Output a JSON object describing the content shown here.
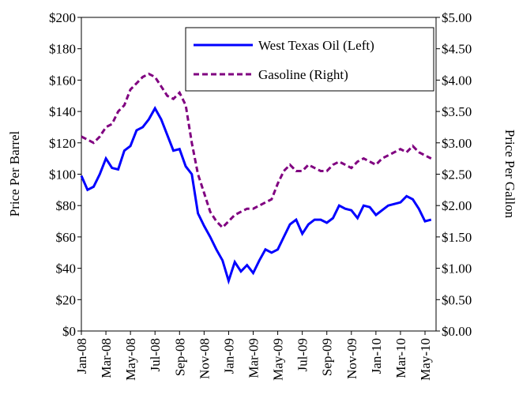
{
  "chart_data": {
    "type": "line",
    "y_label": "Price Per Barrel",
    "y2_label": "Price Per Gallon",
    "x": [
      0,
      0.5,
      1,
      1.5,
      2,
      2.5,
      3,
      3.5,
      4,
      4.5,
      5,
      5.5,
      6,
      6.5,
      7,
      7.5,
      8,
      8.5,
      9,
      9.5,
      10,
      10.5,
      11,
      11.5,
      12,
      12.5,
      13,
      13.5,
      14,
      14.5,
      15,
      15.5,
      16,
      16.5,
      17,
      17.5,
      18,
      18.5,
      19,
      19.5,
      20,
      20.5,
      21,
      21.5,
      22,
      22.5,
      23,
      23.5,
      24,
      24.5,
      25,
      25.5,
      26,
      26.5,
      27,
      27.5,
      28,
      28.5
    ],
    "xlim": [
      0,
      28.9
    ],
    "xticks": [
      {
        "value": 0,
        "label": "Jan-08"
      },
      {
        "value": 2,
        "label": "Mar-08"
      },
      {
        "value": 4,
        "label": "May-08"
      },
      {
        "value": 6,
        "label": "Jul-08"
      },
      {
        "value": 8,
        "label": "Sep-08"
      },
      {
        "value": 10,
        "label": "Nov-08"
      },
      {
        "value": 12,
        "label": "Jan-09"
      },
      {
        "value": 14,
        "label": "Mar-09"
      },
      {
        "value": 16,
        "label": "May-09"
      },
      {
        "value": 18,
        "label": "Jul-09"
      },
      {
        "value": 20,
        "label": "Sep-09"
      },
      {
        "value": 22,
        "label": "Nov-09"
      },
      {
        "value": 24,
        "label": "Jan-10"
      },
      {
        "value": 26,
        "label": "Mar-10"
      },
      {
        "value": 28,
        "label": "May-10"
      }
    ],
    "ylim": [
      0,
      200
    ],
    "yticks": [
      {
        "value": 0,
        "label": "$0"
      },
      {
        "value": 20,
        "label": "$20"
      },
      {
        "value": 40,
        "label": "$40"
      },
      {
        "value": 60,
        "label": "$60"
      },
      {
        "value": 80,
        "label": "$80"
      },
      {
        "value": 100,
        "label": "$100"
      },
      {
        "value": 120,
        "label": "$120"
      },
      {
        "value": 140,
        "label": "$140"
      },
      {
        "value": 160,
        "label": "$160"
      },
      {
        "value": 180,
        "label": "$180"
      },
      {
        "value": 200,
        "label": "$200"
      }
    ],
    "y2lim": [
      0,
      5
    ],
    "y2ticks": [
      {
        "value": 0,
        "label": "$0.00"
      },
      {
        "value": 0.5,
        "label": "$0.50"
      },
      {
        "value": 1,
        "label": "$1.00"
      },
      {
        "value": 1.5,
        "label": "$1.50"
      },
      {
        "value": 2,
        "label": "$2.00"
      },
      {
        "value": 2.5,
        "label": "$2.50"
      },
      {
        "value": 3,
        "label": "$3.00"
      },
      {
        "value": 3.5,
        "label": "$3.50"
      },
      {
        "value": 4,
        "label": "$4.00"
      },
      {
        "value": 4.5,
        "label": "$4.50"
      },
      {
        "value": 5,
        "label": "$5.00"
      }
    ],
    "legend": "top-right",
    "series": [
      {
        "name": "West Texas Oil (Left)",
        "color": "#0000ff",
        "line_style": "solid",
        "values": [
          99,
          90,
          92,
          100,
          110,
          104,
          103,
          115,
          118,
          128,
          130,
          135,
          142,
          135,
          125,
          115,
          116,
          105,
          100,
          75,
          67,
          60,
          52,
          45,
          32,
          44,
          38,
          42,
          37,
          45,
          52,
          50,
          52,
          60,
          68,
          71,
          62,
          68,
          71,
          71,
          69,
          72,
          80,
          78,
          77,
          72,
          80,
          79,
          74,
          77,
          80,
          81,
          82,
          86,
          84,
          78,
          70,
          71
        ]
      },
      {
        "name": "Gasoline (Right)",
        "color": "#800080",
        "line_style": "dashed",
        "axis": "y2",
        "values": [
          3.1,
          3.05,
          3.0,
          3.1,
          3.25,
          3.3,
          3.5,
          3.6,
          3.85,
          3.95,
          4.05,
          4.1,
          4.05,
          3.9,
          3.75,
          3.7,
          3.8,
          3.6,
          3.0,
          2.5,
          2.2,
          1.9,
          1.75,
          1.65,
          1.75,
          1.85,
          1.9,
          1.95,
          1.95,
          2.0,
          2.05,
          2.1,
          2.35,
          2.55,
          2.65,
          2.55,
          2.55,
          2.65,
          2.6,
          2.55,
          2.55,
          2.65,
          2.7,
          2.65,
          2.6,
          2.7,
          2.75,
          2.7,
          2.65,
          2.75,
          2.8,
          2.85,
          2.9,
          2.85,
          2.95,
          2.85,
          2.8,
          2.75
        ]
      }
    ]
  }
}
